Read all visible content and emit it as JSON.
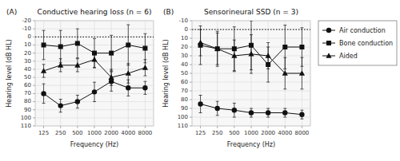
{
  "chart_data": [
    {
      "type": "line",
      "title": "Conductive hearing loss (n = 6)",
      "annotations": [
        "(A)"
      ],
      "x_label": "Frequency (Hz)",
      "y_label": "Hearing level (dB HL)",
      "categories": [
        "125",
        "250",
        "500",
        "1000",
        "2000",
        "4000",
        "8000"
      ],
      "series": [
        {
          "name": "Air conduction",
          "color": "#111111",
          "marker": "circle",
          "line_style": "solid",
          "values": [
            70,
            85,
            80,
            68,
            55,
            63,
            63
          ],
          "errors": [
            12,
            8,
            8,
            12,
            12,
            10,
            8
          ]
        },
        {
          "name": "Bone conduction",
          "color": "#111111",
          "marker": "square",
          "line_style": "solid",
          "values": [
            10,
            12,
            8,
            20,
            20,
            10,
            14
          ],
          "errors": [
            18,
            20,
            18,
            18,
            22,
            25,
            18
          ]
        },
        {
          "name": "Aided",
          "color": "#111111",
          "marker": "triangle",
          "line_style": "solid",
          "values": [
            42,
            35,
            35,
            28,
            50,
            45,
            38
          ],
          "errors": [
            8,
            8,
            8,
            10,
            10,
            12,
            10
          ]
        }
      ],
      "hlines": [
        0
      ],
      "ylim": [
        110,
        -20
      ],
      "yticks": [
        -20,
        -10,
        0,
        10,
        20,
        30,
        40,
        50,
        60,
        70,
        80,
        90,
        100,
        110
      ],
      "grid": true,
      "legend": "right"
    },
    {
      "type": "line",
      "title": "Sensorineural SSD (n = 3)",
      "annotations": [
        "(B)"
      ],
      "x_label": "Frequency (Hz)",
      "y_label": "Hearing level (dB HL)",
      "categories": [
        "125",
        "250",
        "500",
        "1000",
        "2000",
        "4000",
        "8000"
      ],
      "series": [
        {
          "name": "Air conduction",
          "color": "#111111",
          "marker": "circle",
          "line_style": "solid",
          "values": [
            85,
            90,
            92,
            95,
            95,
            95,
            97
          ],
          "errors": [
            10,
            8,
            8,
            5,
            5,
            5,
            5
          ]
        },
        {
          "name": "Bone conduction",
          "color": "#111111",
          "marker": "square",
          "line_style": "solid",
          "values": [
            18,
            22,
            22,
            18,
            40,
            20,
            20
          ],
          "errors": [
            22,
            20,
            25,
            28,
            20,
            25,
            22
          ]
        },
        {
          "name": "Aided",
          "color": "#111111",
          "marker": "triangle",
          "line_style": "solid",
          "values": [
            15,
            22,
            30,
            28,
            30,
            50,
            50
          ],
          "errors": [
            15,
            18,
            18,
            22,
            15,
            18,
            18
          ]
        }
      ],
      "hlines": [
        0
      ],
      "ylim": [
        110,
        -10
      ],
      "yticks": [
        -10,
        0,
        10,
        20,
        30,
        40,
        50,
        60,
        70,
        80,
        90,
        100,
        110
      ],
      "grid": true
    }
  ]
}
